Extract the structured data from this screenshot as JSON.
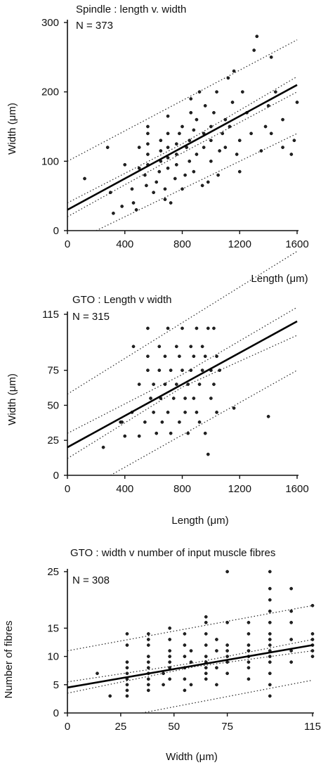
{
  "chart_data": [
    {
      "type": "scatter",
      "title": "Spindle : length v. width",
      "n_label": "N = 373",
      "xlabel": "Length (μm)",
      "ylabel": "Width (μm)",
      "xlim": [
        0,
        1600
      ],
      "ylim": [
        0,
        300
      ],
      "xticks": [
        0,
        400,
        800,
        1200,
        1600
      ],
      "yticks": [
        0,
        100,
        200,
        300
      ],
      "regression": {
        "x": [
          0,
          1600
        ],
        "y": [
          30,
          210
        ]
      },
      "confidence_band": {
        "lower": [
          [
            0,
            20
          ],
          [
            800,
            112
          ],
          [
            1600,
            200
          ]
        ],
        "upper": [
          [
            0,
            40
          ],
          [
            800,
            125
          ],
          [
            1600,
            222
          ]
        ]
      },
      "prediction_band": {
        "lower": [
          [
            200,
            0
          ],
          [
            1600,
            140
          ]
        ],
        "upper": [
          [
            0,
            100
          ],
          [
            1600,
            275
          ]
        ]
      },
      "points": [
        [
          120,
          75
        ],
        [
          280,
          120
        ],
        [
          300,
          55
        ],
        [
          320,
          25
        ],
        [
          380,
          35
        ],
        [
          400,
          95
        ],
        [
          450,
          60
        ],
        [
          460,
          40
        ],
        [
          480,
          30
        ],
        [
          500,
          90
        ],
        [
          500,
          120
        ],
        [
          540,
          80
        ],
        [
          550,
          65
        ],
        [
          560,
          95
        ],
        [
          560,
          110
        ],
        [
          560,
          125
        ],
        [
          560,
          140
        ],
        [
          560,
          150
        ],
        [
          600,
          55
        ],
        [
          620,
          70
        ],
        [
          640,
          85
        ],
        [
          650,
          100
        ],
        [
          650,
          115
        ],
        [
          650,
          130
        ],
        [
          680,
          45
        ],
        [
          680,
          60
        ],
        [
          700,
          90
        ],
        [
          700,
          105
        ],
        [
          700,
          120
        ],
        [
          700,
          140
        ],
        [
          700,
          165
        ],
        [
          720,
          40
        ],
        [
          750,
          75
        ],
        [
          760,
          95
        ],
        [
          760,
          110
        ],
        [
          760,
          125
        ],
        [
          780,
          140
        ],
        [
          800,
          150
        ],
        [
          800,
          60
        ],
        [
          820,
          80
        ],
        [
          830,
          120
        ],
        [
          850,
          100
        ],
        [
          850,
          130
        ],
        [
          860,
          170
        ],
        [
          860,
          190
        ],
        [
          880,
          85
        ],
        [
          880,
          145
        ],
        [
          900,
          110
        ],
        [
          900,
          160
        ],
        [
          920,
          200
        ],
        [
          940,
          65
        ],
        [
          950,
          120
        ],
        [
          950,
          140
        ],
        [
          960,
          180
        ],
        [
          980,
          70
        ],
        [
          1000,
          100
        ],
        [
          1000,
          130
        ],
        [
          1000,
          150
        ],
        [
          1020,
          170
        ],
        [
          1040,
          200
        ],
        [
          1050,
          80
        ],
        [
          1060,
          115
        ],
        [
          1080,
          140
        ],
        [
          1100,
          160
        ],
        [
          1100,
          120
        ],
        [
          1120,
          220
        ],
        [
          1130,
          150
        ],
        [
          1150,
          185
        ],
        [
          1160,
          230
        ],
        [
          1180,
          110
        ],
        [
          1200,
          85
        ],
        [
          1200,
          130
        ],
        [
          1220,
          200
        ],
        [
          1250,
          170
        ],
        [
          1280,
          140
        ],
        [
          1300,
          260
        ],
        [
          1320,
          280
        ],
        [
          1350,
          115
        ],
        [
          1380,
          150
        ],
        [
          1400,
          180
        ],
        [
          1420,
          140
        ],
        [
          1420,
          250
        ],
        [
          1450,
          200
        ],
        [
          1500,
          160
        ],
        [
          1500,
          120
        ],
        [
          1560,
          110
        ],
        [
          1600,
          185
        ],
        [
          1580,
          130
        ]
      ]
    },
    {
      "type": "scatter",
      "title": "GTO : Length v width",
      "n_label": "N = 315",
      "xlabel": "Length (μm)",
      "ylabel": "Width (μm)",
      "xlim": [
        0,
        1600
      ],
      "ylim": [
        0,
        115
      ],
      "xticks": [
        0,
        400,
        800,
        1200,
        1600
      ],
      "yticks": [
        0,
        25,
        50,
        75,
        115
      ],
      "regression": {
        "x": [
          0,
          1600
        ],
        "y": [
          20,
          110
        ]
      },
      "confidence_band": {
        "lower": [
          [
            0,
            12
          ],
          [
            800,
            63
          ],
          [
            1600,
            100
          ]
        ],
        "upper": [
          [
            0,
            30
          ],
          [
            800,
            72
          ],
          [
            1600,
            120
          ]
        ]
      },
      "prediction_band": {
        "lower": [
          [
            300,
            0
          ],
          [
            1600,
            75
          ]
        ],
        "upper": [
          [
            0,
            58
          ],
          [
            1600,
            160
          ]
        ]
      },
      "points": [
        [
          250,
          20
        ],
        [
          370,
          38
        ],
        [
          380,
          38
        ],
        [
          400,
          28
        ],
        [
          450,
          45
        ],
        [
          460,
          92
        ],
        [
          500,
          28
        ],
        [
          500,
          65
        ],
        [
          540,
          38
        ],
        [
          560,
          105
        ],
        [
          560,
          75
        ],
        [
          560,
          85
        ],
        [
          580,
          55
        ],
        [
          600,
          45
        ],
        [
          600,
          65
        ],
        [
          620,
          30
        ],
        [
          640,
          92
        ],
        [
          640,
          75
        ],
        [
          650,
          55
        ],
        [
          660,
          38
        ],
        [
          680,
          85
        ],
        [
          680,
          65
        ],
        [
          700,
          105
        ],
        [
          700,
          45
        ],
        [
          720,
          30
        ],
        [
          720,
          75
        ],
        [
          740,
          55
        ],
        [
          760,
          92
        ],
        [
          760,
          65
        ],
        [
          780,
          38
        ],
        [
          780,
          85
        ],
        [
          800,
          105
        ],
        [
          800,
          75
        ],
        [
          820,
          55
        ],
        [
          820,
          45
        ],
        [
          840,
          30
        ],
        [
          840,
          65
        ],
        [
          860,
          92
        ],
        [
          860,
          75
        ],
        [
          880,
          85
        ],
        [
          880,
          55
        ],
        [
          900,
          105
        ],
        [
          900,
          45
        ],
        [
          920,
          38
        ],
        [
          920,
          65
        ],
        [
          940,
          75
        ],
        [
          940,
          92
        ],
        [
          960,
          30
        ],
        [
          960,
          85
        ],
        [
          980,
          15
        ],
        [
          980,
          105
        ],
        [
          1000,
          55
        ],
        [
          1000,
          75
        ],
        [
          1020,
          65
        ],
        [
          1020,
          105
        ],
        [
          1040,
          85
        ],
        [
          1040,
          45
        ],
        [
          1060,
          75
        ],
        [
          1160,
          48
        ],
        [
          1400,
          42
        ]
      ]
    },
    {
      "type": "scatter",
      "title": "GTO : width v number of input muscle fibres",
      "n_label": "N = 308",
      "xlabel": "Width (μm)",
      "ylabel": "Number of fibres",
      "xlim": [
        0,
        115
      ],
      "ylim": [
        0,
        25
      ],
      "xticks": [
        0,
        25,
        50,
        75,
        115
      ],
      "yticks": [
        0,
        5,
        10,
        15,
        25
      ],
      "regression": {
        "x": [
          0,
          115
        ],
        "y": [
          4.5,
          12
        ]
      },
      "confidence_band": {
        "lower": [
          [
            0,
            3.5
          ],
          [
            60,
            8.2
          ],
          [
            115,
            11
          ]
        ],
        "upper": [
          [
            0,
            5.5
          ],
          [
            60,
            8.9
          ],
          [
            115,
            13
          ]
        ]
      },
      "prediction_band": {
        "lower": [
          [
            35,
            0
          ],
          [
            115,
            5.8
          ]
        ],
        "upper": [
          [
            0,
            11
          ],
          [
            115,
            19
          ]
        ]
      },
      "points": [
        [
          14,
          7
        ],
        [
          20,
          3
        ],
        [
          28,
          3
        ],
        [
          28,
          4
        ],
        [
          28,
          5
        ],
        [
          28,
          6
        ],
        [
          28,
          7
        ],
        [
          28,
          8
        ],
        [
          28,
          9
        ],
        [
          28,
          12
        ],
        [
          28,
          14
        ],
        [
          38,
          4
        ],
        [
          38,
          5
        ],
        [
          38,
          6
        ],
        [
          38,
          7
        ],
        [
          38,
          8
        ],
        [
          38,
          9
        ],
        [
          38,
          10
        ],
        [
          38,
          12
        ],
        [
          38,
          13
        ],
        [
          38,
          14
        ],
        [
          45,
          7
        ],
        [
          45,
          5
        ],
        [
          48,
          6
        ],
        [
          48,
          8
        ],
        [
          48,
          9
        ],
        [
          48,
          10
        ],
        [
          48,
          11
        ],
        [
          48,
          13
        ],
        [
          48,
          15
        ],
        [
          55,
          4
        ],
        [
          55,
          6
        ],
        [
          55,
          8
        ],
        [
          55,
          10
        ],
        [
          55,
          12
        ],
        [
          55,
          14
        ],
        [
          58,
          5
        ],
        [
          58,
          9
        ],
        [
          58,
          11
        ],
        [
          65,
          6
        ],
        [
          65,
          7
        ],
        [
          65,
          8
        ],
        [
          65,
          9
        ],
        [
          65,
          10
        ],
        [
          65,
          12
        ],
        [
          65,
          14
        ],
        [
          65,
          16
        ],
        [
          65,
          17
        ],
        [
          70,
          5
        ],
        [
          70,
          8
        ],
        [
          70,
          11
        ],
        [
          70,
          13
        ],
        [
          75,
          7
        ],
        [
          75,
          9
        ],
        [
          75,
          10
        ],
        [
          75,
          11
        ],
        [
          75,
          12
        ],
        [
          75,
          16
        ],
        [
          75,
          25
        ],
        [
          85,
          6
        ],
        [
          85,
          8
        ],
        [
          85,
          9
        ],
        [
          85,
          10
        ],
        [
          85,
          11
        ],
        [
          85,
          12
        ],
        [
          85,
          14
        ],
        [
          85,
          16
        ],
        [
          95,
          3
        ],
        [
          95,
          5
        ],
        [
          95,
          7
        ],
        [
          95,
          9
        ],
        [
          95,
          10
        ],
        [
          95,
          11
        ],
        [
          95,
          12
        ],
        [
          95,
          13
        ],
        [
          95,
          14
        ],
        [
          95,
          16
        ],
        [
          95,
          18
        ],
        [
          95,
          20
        ],
        [
          95,
          22
        ],
        [
          95,
          25
        ],
        [
          105,
          9
        ],
        [
          105,
          11
        ],
        [
          105,
          13
        ],
        [
          105,
          16
        ],
        [
          105,
          18
        ],
        [
          105,
          22
        ],
        [
          115,
          10
        ],
        [
          115,
          11
        ],
        [
          115,
          12
        ],
        [
          115,
          13
        ],
        [
          115,
          14
        ],
        [
          115,
          19
        ]
      ]
    }
  ]
}
